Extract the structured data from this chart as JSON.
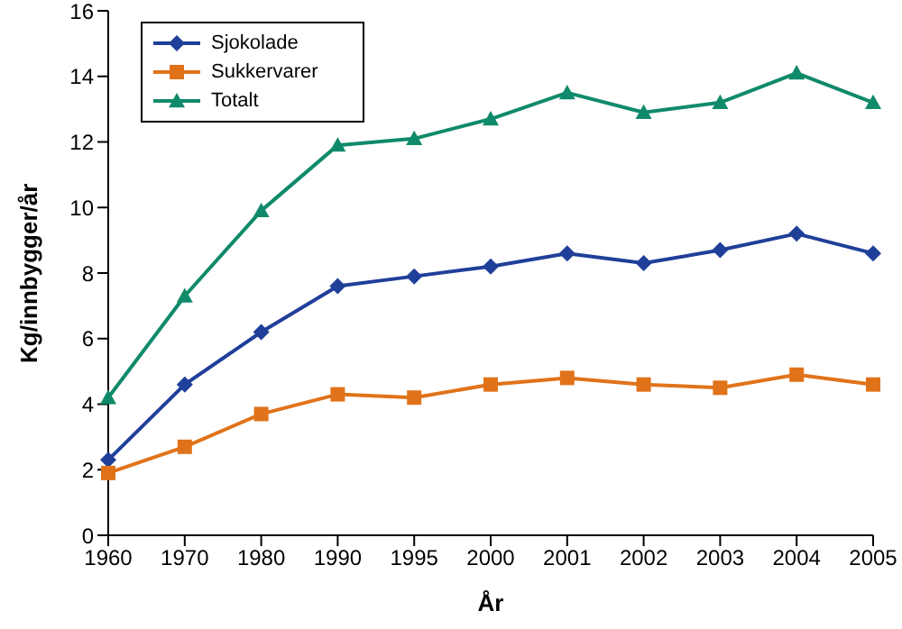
{
  "chart_data": {
    "type": "line",
    "xlabel": "År",
    "ylabel": "Kg/innbygger/år",
    "categories": [
      "1960",
      "1970",
      "1980",
      "1990",
      "1995",
      "2000",
      "2001",
      "2002",
      "2003",
      "2004",
      "2005"
    ],
    "series": [
      {
        "name": "Sjokolade",
        "color": "#1f3f99",
        "marker": "diamond",
        "values": [
          2.3,
          4.6,
          6.2,
          7.6,
          7.9,
          8.2,
          8.6,
          8.3,
          8.7,
          9.2,
          8.6
        ]
      },
      {
        "name": "Sukkervarer",
        "color": "#e0731a",
        "marker": "square",
        "values": [
          1.9,
          2.7,
          3.7,
          4.3,
          4.2,
          4.6,
          4.8,
          4.6,
          4.5,
          4.9,
          4.6
        ]
      },
      {
        "name": "Totalt",
        "color": "#0f8a6a",
        "marker": "triangle",
        "values": [
          4.2,
          7.3,
          9.9,
          11.9,
          12.1,
          12.7,
          13.5,
          12.9,
          13.2,
          14.1,
          13.2
        ]
      }
    ],
    "ylim": [
      0,
      16
    ],
    "yticks": [
      0,
      2,
      4,
      6,
      8,
      10,
      12,
      14,
      16
    ],
    "grid": false,
    "legend": "top left",
    "line_style": "solid"
  }
}
